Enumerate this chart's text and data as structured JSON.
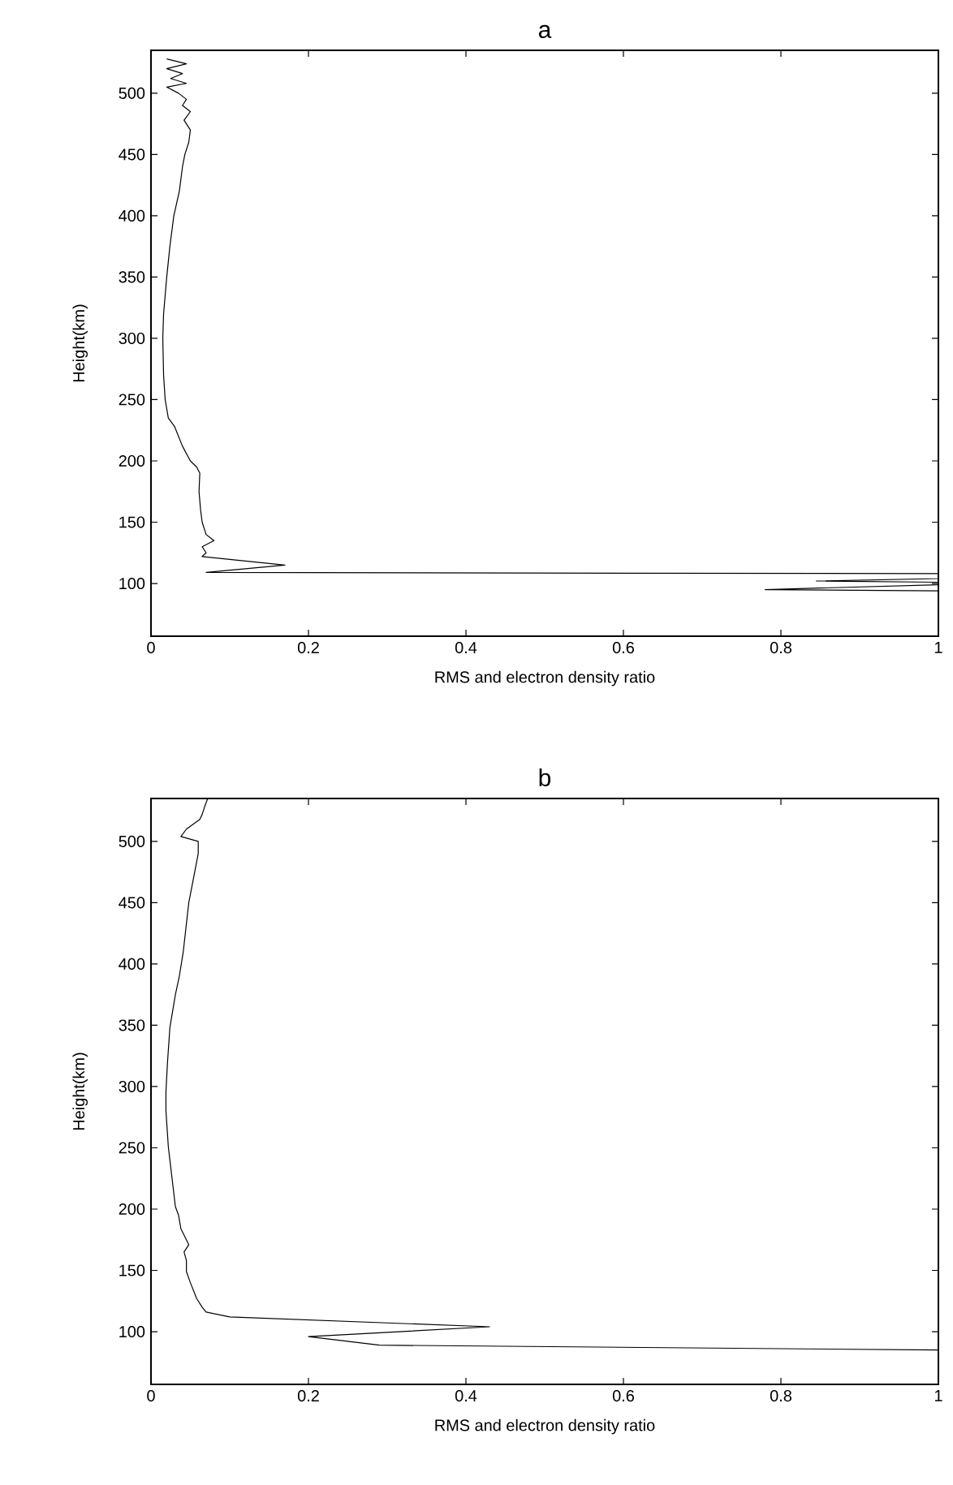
{
  "chart_data": [
    {
      "type": "line",
      "title": "a",
      "xlabel": "RMS and electron density ratio",
      "ylabel": "Height(km)",
      "xlim": [
        0,
        1
      ],
      "ylim": [
        57,
        535
      ],
      "xticks": [
        0,
        0.2,
        0.4,
        0.6,
        0.8,
        1
      ],
      "yticks": [
        100,
        150,
        200,
        250,
        300,
        350,
        400,
        450,
        500
      ],
      "series": [
        {
          "color": "#000000",
          "x": [
            0.02,
            0.045,
            0.02,
            0.04,
            0.025,
            0.045,
            0.02,
            0.035,
            0.045,
            0.04,
            0.05,
            0.042,
            0.05,
            0.048,
            0.043,
            0.04,
            0.036,
            0.029,
            0.024,
            0.02,
            0.016,
            0.015,
            0.016,
            0.018,
            0.022,
            0.03,
            0.04,
            0.05,
            0.058,
            0.062,
            0.061,
            0.063,
            0.065,
            0.07,
            0.08,
            0.065,
            0.07,
            0.065,
            0.17,
            0.07,
            1,
            1,
            0.845,
            1,
            1,
            0.78,
            1
          ],
          "values": [
            528,
            524,
            520,
            516,
            512,
            508,
            505,
            500,
            495,
            490,
            485,
            478,
            470,
            460,
            450,
            440,
            420,
            400,
            375,
            350,
            320,
            300,
            270,
            250,
            235,
            228,
            212,
            200,
            195,
            190,
            175,
            160,
            150,
            140,
            135,
            130,
            125,
            122,
            115,
            109,
            108,
            104,
            102,
            101,
            99,
            95,
            94
          ]
        }
      ]
    },
    {
      "type": "line",
      "title": "b",
      "xlabel": "RMS and electron density ratio",
      "ylabel": "Height(km)",
      "xlim": [
        0,
        1
      ],
      "ylim": [
        57,
        535
      ],
      "xticks": [
        0,
        0.2,
        0.4,
        0.6,
        0.8,
        1
      ],
      "yticks": [
        100,
        150,
        200,
        250,
        300,
        350,
        400,
        450,
        500
      ],
      "series": [
        {
          "color": "#000000",
          "x": [
            0.072,
            0.068,
            0.065,
            0.062,
            0.045,
            0.038,
            0.06,
            0.06,
            0.051,
            0.048,
            0.041,
            0.036,
            0.031,
            0.024,
            0.021,
            0.019,
            0.019,
            0.022,
            0.024,
            0.031,
            0.035,
            0.038,
            0.048,
            0.042,
            0.045,
            0.045,
            0.05,
            0.058,
            0.065,
            0.07,
            0.1,
            0.43,
            0.2,
            0.29,
            1
          ],
          "values": [
            535,
            528,
            522,
            518,
            510,
            504,
            500,
            490,
            460,
            450,
            410,
            390,
            375,
            348,
            320,
            296,
            280,
            251,
            240,
            202,
            195,
            184,
            171,
            165,
            158,
            149,
            140,
            127,
            120,
            116,
            112,
            104,
            96,
            89,
            85
          ]
        }
      ]
    }
  ]
}
